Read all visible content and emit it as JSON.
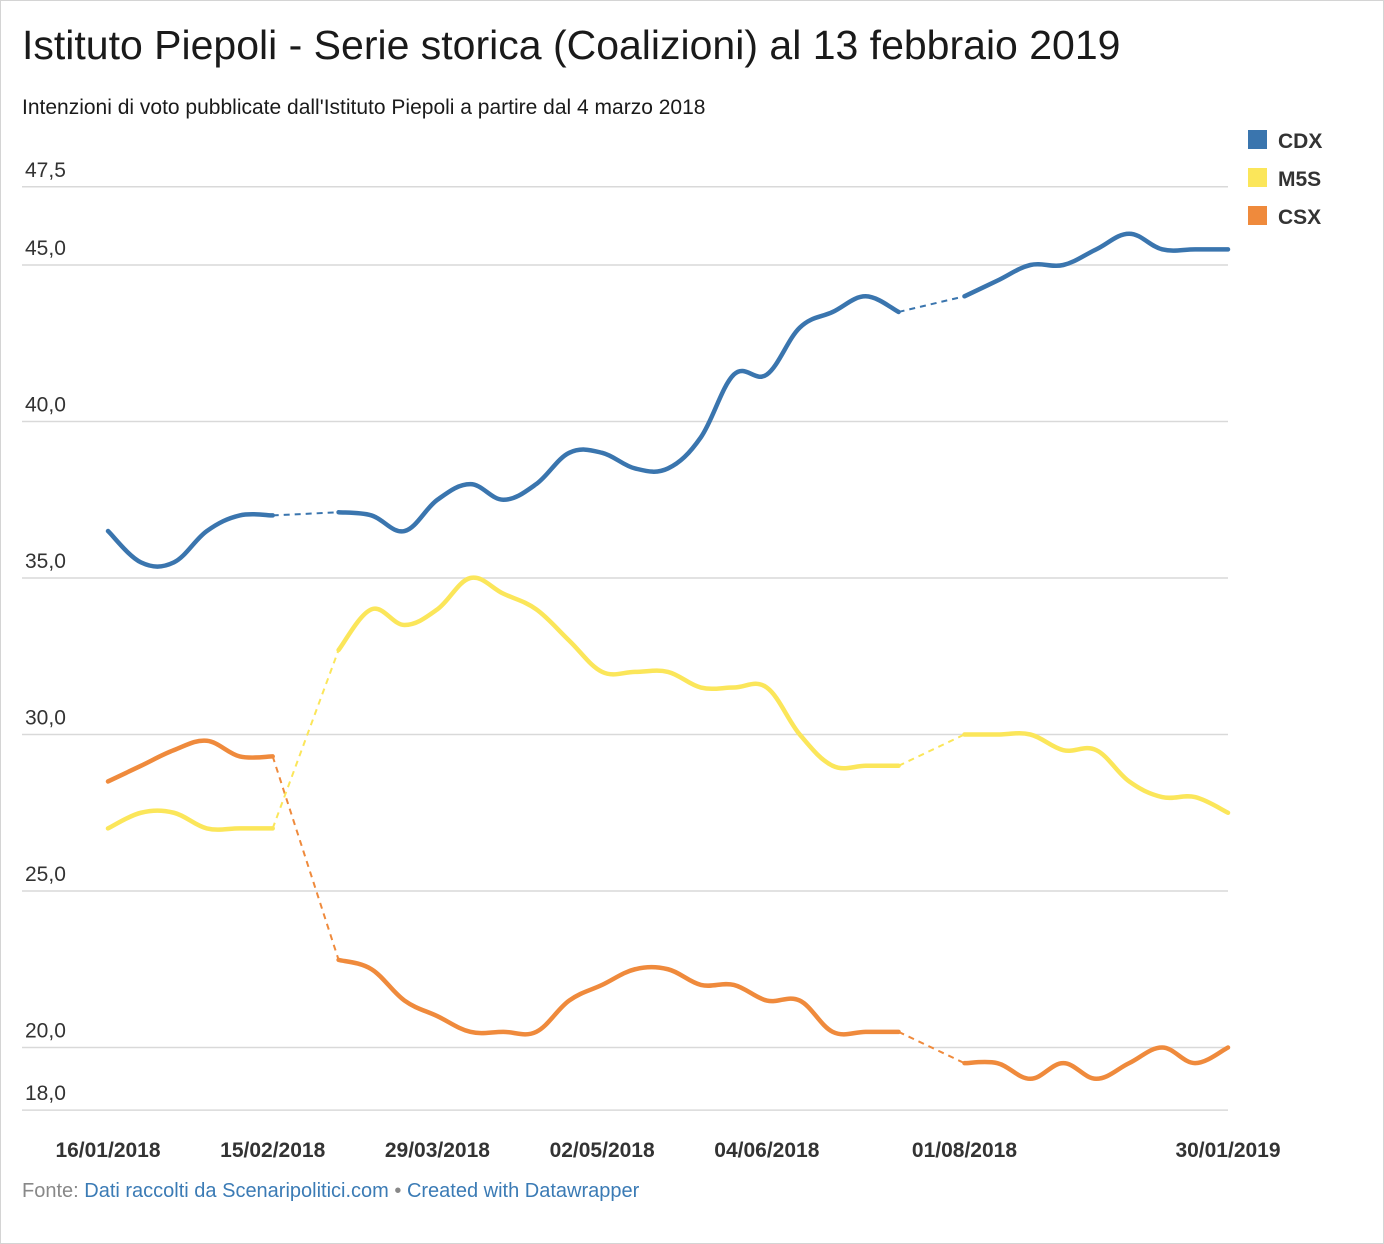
{
  "chart_data": {
    "type": "line",
    "title": "Istituto Piepoli - Serie storica (Coalizioni) al 13 febbraio 2019",
    "subtitle": "Intenzioni di voto pubblicate dall'Istituto Piepoli a partire dal 4 marzo 2018",
    "ylim": [
      18,
      47.5
    ],
    "yticks": [
      "47,5",
      "45,0",
      "40,0",
      "35,0",
      "30,0",
      "25,0",
      "20,0",
      "18,0"
    ],
    "ytick_values": [
      47.5,
      45,
      40,
      35,
      30,
      25,
      20,
      18
    ],
    "xtick_labels": [
      {
        "index": 0,
        "label": "16/01/2018"
      },
      {
        "index": 5,
        "label": "15/02/2018"
      },
      {
        "index": 10,
        "label": "29/03/2018"
      },
      {
        "index": 15,
        "label": "02/05/2018"
      },
      {
        "index": 20,
        "label": "04/06/2018"
      },
      {
        "index": 26,
        "label": "01/08/2018"
      },
      {
        "index": 34,
        "label": "30/01/2019"
      }
    ],
    "point_count": 35,
    "gaps": [
      [
        5,
        7
      ],
      [
        24,
        26
      ]
    ],
    "legend": {
      "placement": "top-right"
    },
    "series": [
      {
        "name": "CDX",
        "color": "#3a75ae",
        "values": [
          36.5,
          35.5,
          35.5,
          36.5,
          37.0,
          37.0,
          null,
          37.1,
          37.0,
          36.5,
          37.5,
          38.0,
          37.5,
          38.0,
          39.0,
          39.0,
          38.5,
          38.5,
          39.5,
          41.5,
          41.5,
          43.0,
          43.5,
          44.0,
          43.5,
          null,
          44.0,
          44.5,
          45.0,
          45.0,
          45.5,
          46.0,
          45.5,
          45.5,
          45.5
        ]
      },
      {
        "name": "M5S",
        "color": "#fbe65a",
        "values": [
          27.0,
          27.5,
          27.5,
          27.0,
          27.0,
          27.0,
          null,
          32.7,
          34.0,
          33.5,
          34.0,
          35.0,
          34.5,
          34.0,
          33.0,
          32.0,
          32.0,
          32.0,
          31.5,
          31.5,
          31.5,
          30.0,
          29.0,
          29.0,
          29.0,
          null,
          30.0,
          30.0,
          30.0,
          29.5,
          29.5,
          28.5,
          28.0,
          28.0,
          27.5
        ]
      },
      {
        "name": "CSX",
        "color": "#ef8a3c",
        "values": [
          28.5,
          29.0,
          29.5,
          29.8,
          29.3,
          29.3,
          null,
          22.8,
          22.5,
          21.5,
          21.0,
          20.5,
          20.5,
          20.5,
          21.5,
          22.0,
          22.5,
          22.5,
          22.0,
          22.0,
          21.5,
          21.5,
          20.5,
          20.5,
          20.5,
          null,
          19.5,
          19.5,
          19.0,
          19.5,
          19.0,
          19.5,
          20.0,
          19.5,
          20.0
        ]
      }
    ]
  },
  "footer": {
    "prefix": "Fonte: ",
    "source": "Dati raccolti da Scenaripolitici.com",
    "separator": " • ",
    "credit": "Created with Datawrapper"
  }
}
